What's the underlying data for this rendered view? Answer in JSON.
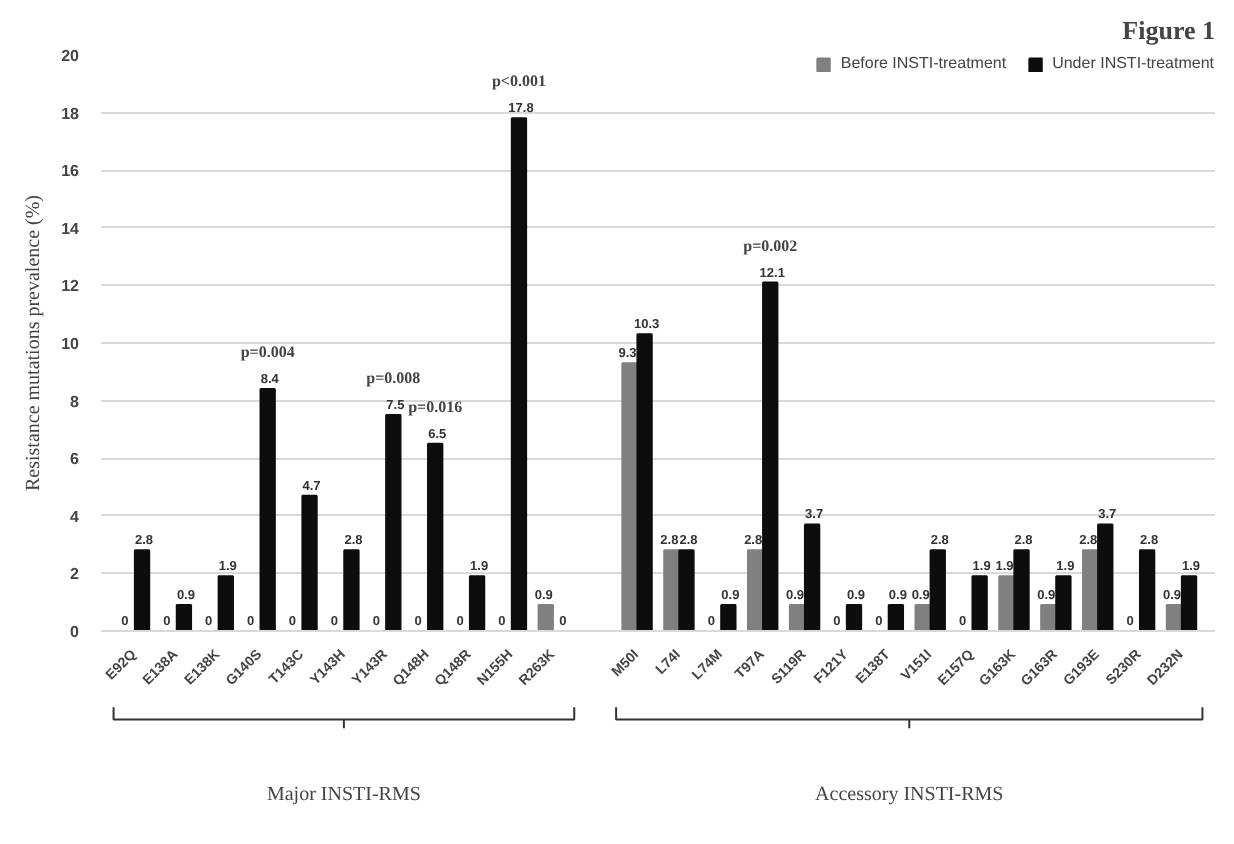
{
  "chart_data": {
    "type": "bar",
    "title": "Figure 1",
    "ylabel": "Resistance mutations prevalence (%)",
    "categories": [
      "E92Q",
      "E138A",
      "E138K",
      "G140S",
      "T143C",
      "Y143H",
      "Y143R",
      "Q148H",
      "Q148R",
      "N155H",
      "R263K",
      null,
      "M50I",
      "L74I",
      "L74M",
      "T97A",
      "S119R",
      "F121Y",
      "E138T",
      "V151I",
      "E157Q",
      "G163K",
      "G163R",
      "G193E",
      "S230R",
      "D232N"
    ],
    "series": [
      {
        "name": "Before INSTI-treatment",
        "color": "#808080",
        "values": [
          0,
          0,
          0,
          0,
          0,
          0,
          0,
          0,
          0,
          0,
          0.9,
          null,
          9.3,
          2.8,
          0,
          2.8,
          0.9,
          0,
          0,
          0.9,
          0,
          1.9,
          0.9,
          2.8,
          0,
          0.9
        ]
      },
      {
        "name": "Under INSTI-treatment",
        "color": "#0d0d0d",
        "values": [
          2.8,
          0.9,
          1.9,
          8.4,
          4.7,
          2.8,
          7.5,
          6.5,
          1.9,
          17.8,
          0,
          null,
          10.3,
          2.8,
          0.9,
          12.1,
          3.7,
          0.9,
          0.9,
          2.8,
          1.9,
          2.8,
          1.9,
          3.7,
          2.8,
          1.9
        ]
      }
    ],
    "data_labels": true,
    "ylim": [
      0,
      20
    ],
    "yticks": [
      0,
      2,
      4,
      6,
      8,
      10,
      12,
      14,
      16,
      18,
      20
    ],
    "grid": "y",
    "legend": "top right",
    "annotations": [
      {
        "text": "p=0.004",
        "x": "G140S",
        "y": 8.4
      },
      {
        "text": "p=0.008",
        "x": "Y143R",
        "y": 7.5
      },
      {
        "text": "p=0.016",
        "x": "Q148H",
        "y": 6.5
      },
      {
        "text": "p<0.001",
        "x": "N155H",
        "y": 17.8
      },
      {
        "text": "p=0.002",
        "x": "T97A",
        "y": 12.1
      },
      "Major INSTI-RMS",
      "Accessory INSTI-RMS"
    ]
  }
}
